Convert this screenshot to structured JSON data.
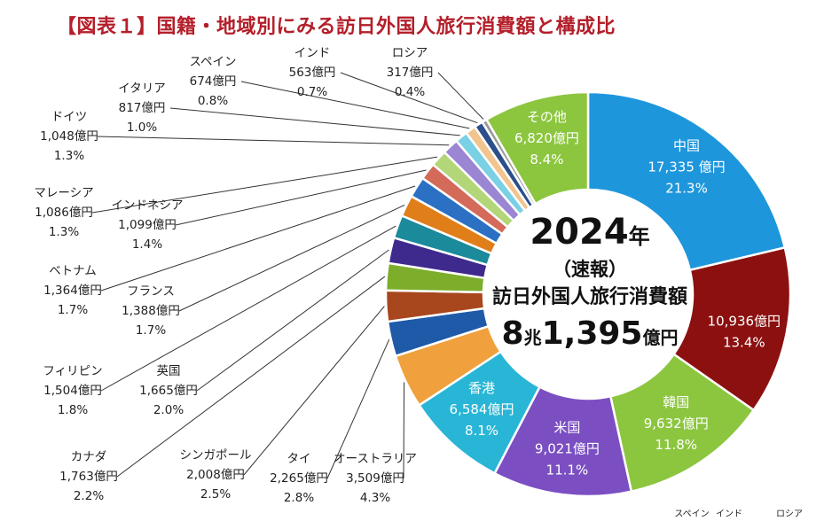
{
  "chart_data": {
    "type": "pie",
    "title": "【図表１】国籍・地域別にみる訪日外国人旅行消費額と構成比",
    "unit": "億円",
    "center": {
      "year": "2024",
      "year_unit": "年",
      "status": "（速報）",
      "label": "訪日外国人旅行消費額",
      "total_a": "8",
      "total_a_unit": "兆",
      "total_b": "1,395",
      "total_b_unit": "億円"
    },
    "slices": [
      {
        "name": "中国",
        "value": 17335,
        "value_label": "17,335 億円",
        "share": "21.3%",
        "color": "#1e96dc"
      },
      {
        "name": "",
        "value": 10936,
        "value_label": "10,936億円",
        "share": "13.4%",
        "color": "#8c1010"
      },
      {
        "name": "韓国",
        "value": 9632,
        "value_label": "9,632億円",
        "share": "11.8%",
        "color": "#8cc63f"
      },
      {
        "name": "米国",
        "value": 9021,
        "value_label": "9,021億円",
        "share": "11.1%",
        "color": "#7b4fc2"
      },
      {
        "name": "香港",
        "value": 6584,
        "value_label": "6,584億円",
        "share": "8.1%",
        "color": "#29b6d6"
      },
      {
        "name": "オーストラリア",
        "value": 3509,
        "value_label": "3,509億円",
        "share": "4.3%",
        "color": "#f0a03c"
      },
      {
        "name": "タイ",
        "value": 2265,
        "value_label": "2,265億円",
        "share": "2.8%",
        "color": "#1f5aa8"
      },
      {
        "name": "シンガポール",
        "value": 2008,
        "value_label": "2,008億円",
        "share": "2.5%",
        "color": "#a8461e"
      },
      {
        "name": "カナダ",
        "value": 1763,
        "value_label": "1,763億円",
        "share": "2.2%",
        "color": "#7cae2c"
      },
      {
        "name": "英国",
        "value": 1665,
        "value_label": "1,665億円",
        "share": "2.0%",
        "color": "#3e2a8c"
      },
      {
        "name": "フィリピン",
        "value": 1504,
        "value_label": "1,504億円",
        "share": "1.8%",
        "color": "#1b8a9a"
      },
      {
        "name": "フランス",
        "value": 1388,
        "value_label": "1,388億円",
        "share": "1.7%",
        "color": "#e07e1a"
      },
      {
        "name": "ベトナム",
        "value": 1364,
        "value_label": "1,364億円",
        "share": "1.7%",
        "color": "#2b70c2"
      },
      {
        "name": "インドネシア",
        "value": 1099,
        "value_label": "1,099億円",
        "share": "1.4%",
        "color": "#d46a5a"
      },
      {
        "name": "マレーシア",
        "value": 1086,
        "value_label": "1,086億円",
        "share": "1.3%",
        "color": "#b2d678"
      },
      {
        "name": "ドイツ",
        "value": 1048,
        "value_label": "1,048億円",
        "share": "1.3%",
        "color": "#9a86d2"
      },
      {
        "name": "イタリア",
        "value": 817,
        "value_label": "817億円",
        "share": "1.0%",
        "color": "#7ad0e4"
      },
      {
        "name": "スペイン",
        "value": 674,
        "value_label": "674億円",
        "share": "0.8%",
        "color": "#f2c48e"
      },
      {
        "name": "インド",
        "value": 563,
        "value_label": "563億円",
        "share": "0.7%",
        "color": "#2a4f8a"
      },
      {
        "name": "ロシア",
        "value": 317,
        "value_label": "317億円",
        "share": "0.4%",
        "color": "#9a9a9a"
      },
      {
        "name": "その他",
        "value": 6820,
        "value_label": "6,820億円",
        "share": "8.4%",
        "color": "#8cc63f"
      }
    ],
    "footer_labels": [
      "スペイン",
      "インド",
      "ロシア"
    ]
  }
}
